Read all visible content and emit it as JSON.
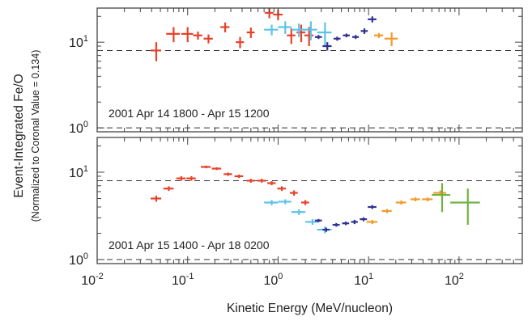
{
  "chart_data": {
    "type": "scatter",
    "xlabel": "Kinetic Energy (MeV/nucleon)",
    "ylabel": "Event-Integrated Fe/O",
    "ylabel_sub": "(Normalized to Coronal Value = 0.134)",
    "xscale": "log",
    "yscale": "log",
    "xlim": [
      0.01,
      500
    ],
    "x_ticks": [
      {
        "value": 0.01,
        "base": "10",
        "exp": "-2"
      },
      {
        "value": 0.1,
        "base": "10",
        "exp": "-1"
      },
      {
        "value": 1,
        "base": "10",
        "exp": "0"
      },
      {
        "value": 10,
        "base": "10",
        "exp": "1"
      },
      {
        "value": 100,
        "base": "10",
        "exp": "2"
      }
    ],
    "colors": {
      "red": "#e8412a",
      "cyan": "#5bc3ea",
      "navy": "#2f3191",
      "orange": "#f39a2b",
      "green": "#6fb244",
      "ref_line": "#333333"
    },
    "panels": [
      {
        "annotation": "2001 Apr 14 1800 - Apr 15 1200",
        "ylim": [
          0.9,
          25
        ],
        "y_ticks": [
          {
            "value": 1,
            "base": "10",
            "exp": "0"
          },
          {
            "value": 10,
            "base": "10",
            "exp": "1"
          }
        ],
        "ref_lines": [
          1,
          8
        ],
        "series": [
          {
            "color": "red",
            "points": [
              {
                "x": 0.045,
                "y": 8.0,
                "xerr": 0.006,
                "yerr": 2.0
              },
              {
                "x": 0.07,
                "y": 12.5,
                "xerr": 0.012,
                "yerr": 2.5
              },
              {
                "x": 0.1,
                "y": 12.5,
                "xerr": 0.015,
                "yerr": 2.5
              },
              {
                "x": 0.13,
                "y": 12.0,
                "xerr": 0.015,
                "yerr": 1.3
              },
              {
                "x": 0.17,
                "y": 11.0,
                "xerr": 0.02,
                "yerr": 1.3
              },
              {
                "x": 0.26,
                "y": 15.0,
                "xerr": 0.03,
                "yerr": 2.0
              },
              {
                "x": 0.38,
                "y": 10.0,
                "xerr": 0.04,
                "yerr": 1.5
              },
              {
                "x": 0.5,
                "y": 13.0,
                "xerr": 0.05,
                "yerr": 1.8
              },
              {
                "x": 0.8,
                "y": 22.0,
                "xerr": 0.09,
                "yerr": 3.0
              },
              {
                "x": 1.0,
                "y": 21.0,
                "xerr": 0.12,
                "yerr": 3.0
              },
              {
                "x": 1.4,
                "y": 12.0,
                "xerr": 0.15,
                "yerr": 2.5
              },
              {
                "x": 1.8,
                "y": 13.0,
                "xerr": 0.2,
                "yerr": 3.0
              },
              {
                "x": 2.2,
                "y": 12.0,
                "xerr": 0.25,
                "yerr": 3.0
              }
            ]
          },
          {
            "color": "cyan",
            "points": [
              {
                "x": 0.85,
                "y": 14.0,
                "xerr": 0.15,
                "yerr": 2.0
              },
              {
                "x": 1.2,
                "y": 15.0,
                "xerr": 0.2,
                "yerr": 2.5
              },
              {
                "x": 1.7,
                "y": 14.0,
                "xerr": 0.3,
                "yerr": 2.5
              },
              {
                "x": 2.3,
                "y": 14.0,
                "xerr": 0.4,
                "yerr": 3.5
              },
              {
                "x": 3.3,
                "y": 13.0,
                "xerr": 0.6,
                "yerr": 4.0
              }
            ]
          },
          {
            "color": "navy",
            "points": [
              {
                "x": 2.8,
                "y": 11.5,
                "xerr": 0.25,
                "yerr": 0.6
              },
              {
                "x": 3.5,
                "y": 9.0,
                "xerr": 0.4,
                "yerr": 1.0
              },
              {
                "x": 4.5,
                "y": 11.0,
                "xerr": 0.4,
                "yerr": 0.6
              },
              {
                "x": 5.7,
                "y": 12.0,
                "xerr": 0.5,
                "yerr": 0.6
              },
              {
                "x": 7.2,
                "y": 11.5,
                "xerr": 0.6,
                "yerr": 0.6
              },
              {
                "x": 9.0,
                "y": 13.5,
                "xerr": 0.8,
                "yerr": 1.0
              },
              {
                "x": 11.0,
                "y": 18.5,
                "xerr": 1.2,
                "yerr": 1.5
              }
            ]
          },
          {
            "color": "orange",
            "points": [
              {
                "x": 13.0,
                "y": 12.0,
                "xerr": 1.5,
                "yerr": 0.8
              },
              {
                "x": 18.0,
                "y": 11.0,
                "xerr": 3.0,
                "yerr": 2.0
              }
            ]
          }
        ]
      },
      {
        "annotation": "2001 Apr 15 1400 - Apr 18 0200",
        "ylim": [
          0.9,
          25
        ],
        "y_ticks": [
          {
            "value": 1,
            "base": "10",
            "exp": "0"
          },
          {
            "value": 10,
            "base": "10",
            "exp": "1"
          }
        ],
        "ref_lines": [
          1,
          8
        ],
        "series": [
          {
            "color": "red",
            "points": [
              {
                "x": 0.045,
                "y": 5.0,
                "xerr": 0.006,
                "yerr": 0.4
              },
              {
                "x": 0.062,
                "y": 6.5,
                "xerr": 0.008,
                "yerr": 0.4
              },
              {
                "x": 0.085,
                "y": 8.5,
                "xerr": 0.01,
                "yerr": 0.5
              },
              {
                "x": 0.11,
                "y": 8.5,
                "xerr": 0.013,
                "yerr": 0.5
              },
              {
                "x": 0.16,
                "y": 11.5,
                "xerr": 0.02,
                "yerr": 0.4
              },
              {
                "x": 0.21,
                "y": 11.0,
                "xerr": 0.025,
                "yerr": 0.4
              },
              {
                "x": 0.28,
                "y": 9.5,
                "xerr": 0.03,
                "yerr": 0.4
              },
              {
                "x": 0.37,
                "y": 9.0,
                "xerr": 0.04,
                "yerr": 0.4
              },
              {
                "x": 0.5,
                "y": 8.0,
                "xerr": 0.05,
                "yerr": 0.4
              },
              {
                "x": 0.66,
                "y": 8.0,
                "xerr": 0.07,
                "yerr": 0.4
              },
              {
                "x": 0.85,
                "y": 7.5,
                "xerr": 0.09,
                "yerr": 0.4
              },
              {
                "x": 1.1,
                "y": 6.5,
                "xerr": 0.12,
                "yerr": 0.4
              },
              {
                "x": 1.5,
                "y": 5.8,
                "xerr": 0.15,
                "yerr": 0.4
              },
              {
                "x": 2.0,
                "y": 4.5,
                "xerr": 0.2,
                "yerr": 0.3
              }
            ]
          },
          {
            "color": "cyan",
            "points": [
              {
                "x": 0.85,
                "y": 4.5,
                "xerr": 0.15,
                "yerr": 0.3
              },
              {
                "x": 1.2,
                "y": 4.6,
                "xerr": 0.2,
                "yerr": 0.3
              },
              {
                "x": 1.7,
                "y": 3.5,
                "xerr": 0.3,
                "yerr": 0.25
              },
              {
                "x": 2.4,
                "y": 2.7,
                "xerr": 0.4,
                "yerr": 0.2
              },
              {
                "x": 3.3,
                "y": 2.2,
                "xerr": 0.6,
                "yerr": 0.2
              }
            ]
          },
          {
            "color": "navy",
            "points": [
              {
                "x": 2.8,
                "y": 2.8,
                "xerr": 0.25,
                "yerr": 0.12
              },
              {
                "x": 3.4,
                "y": 2.2,
                "xerr": 0.3,
                "yerr": 0.12
              },
              {
                "x": 4.4,
                "y": 2.5,
                "xerr": 0.4,
                "yerr": 0.12
              },
              {
                "x": 5.6,
                "y": 2.6,
                "xerr": 0.5,
                "yerr": 0.12
              },
              {
                "x": 7.0,
                "y": 2.7,
                "xerr": 0.6,
                "yerr": 0.15
              },
              {
                "x": 8.8,
                "y": 2.9,
                "xerr": 0.8,
                "yerr": 0.15
              },
              {
                "x": 11.0,
                "y": 4.0,
                "xerr": 1.2,
                "yerr": 0.2
              }
            ]
          },
          {
            "color": "orange",
            "points": [
              {
                "x": 11.0,
                "y": 2.7,
                "xerr": 1.5,
                "yerr": 0.15
              },
              {
                "x": 16.0,
                "y": 3.6,
                "xerr": 2.0,
                "yerr": 0.2
              },
              {
                "x": 23.0,
                "y": 4.5,
                "xerr": 3.0,
                "yerr": 0.25
              },
              {
                "x": 33.0,
                "y": 4.9,
                "xerr": 4.0,
                "yerr": 0.25
              },
              {
                "x": 45.0,
                "y": 4.9,
                "xerr": 6.0,
                "yerr": 0.25
              },
              {
                "x": 62.0,
                "y": 5.8,
                "xerr": 10.0,
                "yerr": 0.4
              }
            ]
          },
          {
            "color": "green",
            "points": [
              {
                "x": 65.0,
                "y": 5.5,
                "xerr": 15.0,
                "yerr": 2.0
              },
              {
                "x": 125.0,
                "y": 4.5,
                "xerr": 45.0,
                "yerr": 2.0
              }
            ]
          }
        ]
      }
    ]
  }
}
